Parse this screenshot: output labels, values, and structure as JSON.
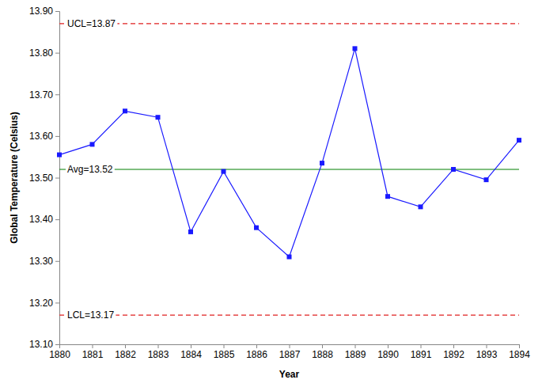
{
  "chart_data": {
    "type": "line",
    "x_label": "Year",
    "y_label": "Global Temperature (Celsius)",
    "x": [
      1880,
      1881,
      1882,
      1883,
      1884,
      1885,
      1886,
      1887,
      1888,
      1889,
      1890,
      1891,
      1892,
      1893,
      1894
    ],
    "values": [
      13.555,
      13.58,
      13.66,
      13.645,
      13.37,
      13.515,
      13.38,
      13.31,
      13.535,
      13.81,
      13.455,
      13.43,
      13.52,
      13.495,
      13.59
    ],
    "color": "#1a1aff",
    "marker": "square",
    "line_style": "solid",
    "grid": false,
    "xlim": [
      1880,
      1894
    ],
    "xticks": [
      1880,
      1881,
      1882,
      1883,
      1884,
      1885,
      1886,
      1887,
      1888,
      1889,
      1890,
      1891,
      1892,
      1893,
      1894
    ],
    "ylim": [
      13.1,
      13.9
    ],
    "yticks": [
      {
        "value": 13.1,
        "label": "13.10"
      },
      {
        "value": 13.2,
        "label": "13.20"
      },
      {
        "value": 13.3,
        "label": "13.30"
      },
      {
        "value": 13.4,
        "label": "13.40"
      },
      {
        "value": 13.5,
        "label": "13.50"
      },
      {
        "value": 13.6,
        "label": "13.60"
      },
      {
        "value": 13.7,
        "label": "13.70"
      },
      {
        "value": 13.8,
        "label": "13.80"
      },
      {
        "value": 13.9,
        "label": "13.90"
      }
    ],
    "reference_lines": [
      {
        "label": "UCL=13.87",
        "value": 13.87,
        "color": "#e02020",
        "line_style": "dashed"
      },
      {
        "label": "Avg=13.52",
        "value": 13.52,
        "color": "#008000",
        "line_style": "solid"
      },
      {
        "label": "LCL=13.17",
        "value": 13.17,
        "color": "#e02020",
        "line_style": "dashed"
      }
    ]
  }
}
